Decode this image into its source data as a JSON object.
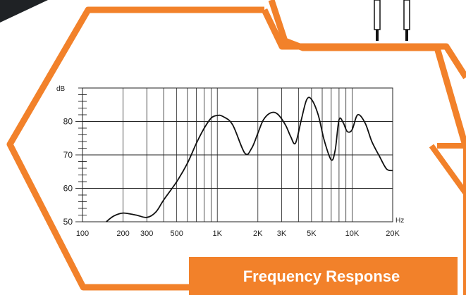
{
  "colors": {
    "accent": "#F2812A",
    "dark": "#1F2225",
    "curve": "#111111",
    "grid": "#222222",
    "background": "#FFFFFF",
    "caption_text": "#FFFFFF"
  },
  "decorations": {
    "top_left_shape": "dark-diagonal-band",
    "top_right_graphic": "earphone-cable-plugs"
  },
  "caption": {
    "text": "Frequency Response"
  },
  "chart_data": {
    "type": "line",
    "title": "",
    "xlabel": "Hz",
    "ylabel": "dB",
    "x_scale": "log",
    "xlim": [
      100,
      20000
    ],
    "ylim": [
      50,
      90
    ],
    "grid": true,
    "x_ticks": [
      {
        "value": 100,
        "label": "100"
      },
      {
        "value": 200,
        "label": "200"
      },
      {
        "value": 300,
        "label": "300"
      },
      {
        "value": 500,
        "label": "500"
      },
      {
        "value": 1000,
        "label": "1K"
      },
      {
        "value": 2000,
        "label": "2K"
      },
      {
        "value": 3000,
        "label": "3K"
      },
      {
        "value": 5000,
        "label": "5K"
      },
      {
        "value": 10000,
        "label": "10K"
      },
      {
        "value": 20000,
        "label": "20K"
      }
    ],
    "x_minor_gridlines": [
      200,
      300,
      400,
      500,
      600,
      700,
      800,
      900,
      1000,
      2000,
      3000,
      4000,
      5000,
      6000,
      7000,
      8000,
      9000,
      10000
    ],
    "y_ticks": [
      {
        "value": 50,
        "label": "50"
      },
      {
        "value": 60,
        "label": "60"
      },
      {
        "value": 70,
        "label": "70"
      },
      {
        "value": 80,
        "label": "80"
      }
    ],
    "y_minor_step": 2,
    "series": [
      {
        "name": "",
        "x": [
          150,
          170,
          200,
          250,
          300,
          350,
          400,
          500,
          600,
          700,
          800,
          900,
          1000,
          1100,
          1300,
          1600,
          1800,
          2000,
          2200,
          2500,
          2800,
          3200,
          3500,
          3800,
          4200,
          4600,
          5000,
          5600,
          6200,
          7000,
          7500,
          8000,
          8600,
          9200,
          10000,
          11000,
          12500,
          14000,
          16000,
          18000,
          20000
        ],
        "y": [
          50.0,
          51.7,
          52.6,
          52.0,
          51.3,
          52.9,
          56.5,
          62.0,
          67.5,
          73.5,
          78.0,
          81.0,
          81.8,
          81.5,
          79.0,
          70.5,
          72.0,
          76.5,
          80.5,
          82.6,
          82.2,
          79.0,
          75.5,
          73.5,
          80.5,
          86.5,
          86.6,
          82.0,
          74.5,
          68.5,
          71.5,
          80.5,
          79.6,
          77.0,
          77.5,
          82.0,
          79.5,
          74.0,
          69.5,
          65.8,
          65.3
        ]
      }
    ]
  }
}
